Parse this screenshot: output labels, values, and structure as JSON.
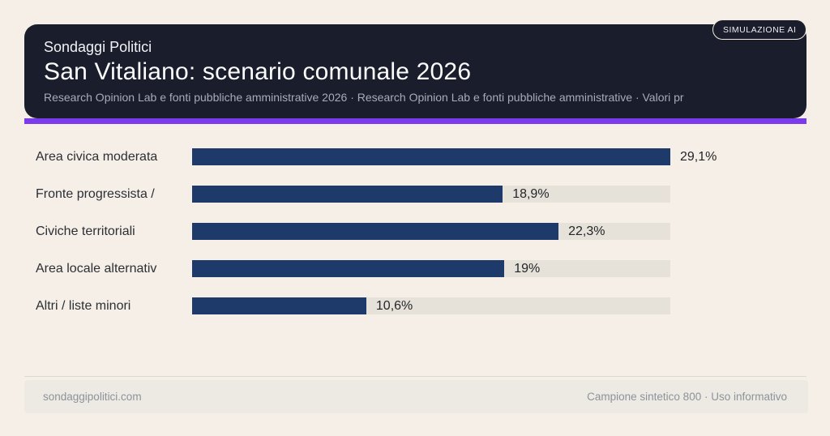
{
  "badge": {
    "label": "SIMULAZIONE AI"
  },
  "header": {
    "kicker": "Sondaggi Politici",
    "title": "San Vitaliano: scenario comunale 2026",
    "subtitle": "Research Opinion Lab e fonti pubbliche amministrative 2026 · Research Opinion Lab e fonti pubbliche amministrative · Valori pr"
  },
  "chart_data": {
    "type": "bar",
    "orientation": "horizontal",
    "title": "San Vitaliano: scenario comunale 2026",
    "categories": [
      "Area civica moderata",
      "Fronte progressista /",
      "Civiche territoriali",
      "Area locale alternativ",
      "Altri / liste minori"
    ],
    "values": [
      29.1,
      18.9,
      22.3,
      19,
      10.6
    ],
    "value_labels": [
      "29,1%",
      "18,9%",
      "22,3%",
      "19%",
      "10,6%"
    ],
    "xlim": [
      0,
      29.1
    ],
    "grid": false,
    "legend": false,
    "bar_color": "#1e3a6b",
    "track_color": "#e6e2da"
  },
  "footer": {
    "left": "sondaggipolitici.com",
    "right": "Campione sintetico 800 · Uso informativo"
  },
  "colors": {
    "page_background": "#f5efe7",
    "header_background": "#1a1d2b",
    "accent_purple": "#7c3aed",
    "bar_fill": "#1e3a6b",
    "bar_track": "#e6e2da",
    "footer_background": "#edeae4",
    "footer_text": "#8d929b"
  }
}
